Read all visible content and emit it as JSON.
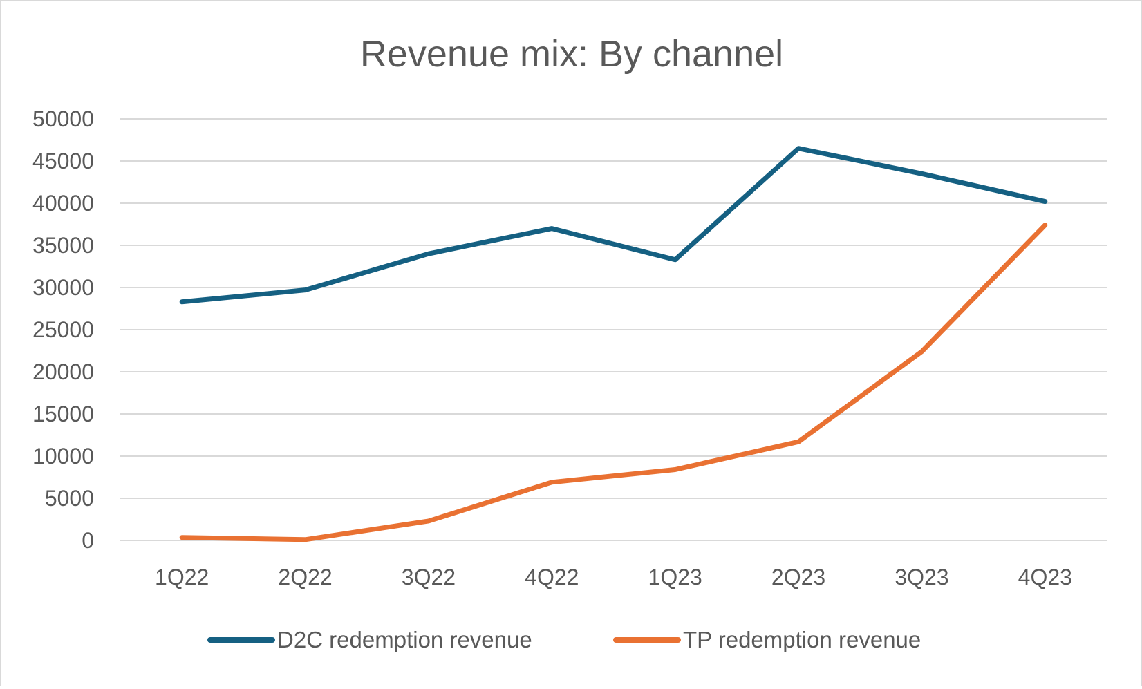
{
  "chart_data": {
    "type": "line",
    "title": "Revenue mix: By channel",
    "xlabel": "",
    "ylabel": "",
    "categories": [
      "1Q22",
      "2Q22",
      "3Q22",
      "4Q22",
      "1Q23",
      "2Q23",
      "3Q23",
      "4Q23"
    ],
    "ylim": [
      0,
      50000
    ],
    "yticks": [
      0,
      5000,
      10000,
      15000,
      20000,
      25000,
      30000,
      35000,
      40000,
      45000,
      50000
    ],
    "grid": true,
    "legend_position": "bottom",
    "series": [
      {
        "name": "D2C redemption revenue",
        "color": "#156082",
        "values": [
          28300,
          29700,
          34000,
          37000,
          33300,
          46500,
          43500,
          40200
        ]
      },
      {
        "name": "TP redemption revenue",
        "color": "#E97132",
        "values": [
          350,
          100,
          2300,
          6900,
          8400,
          11700,
          22400,
          37400
        ]
      }
    ]
  }
}
